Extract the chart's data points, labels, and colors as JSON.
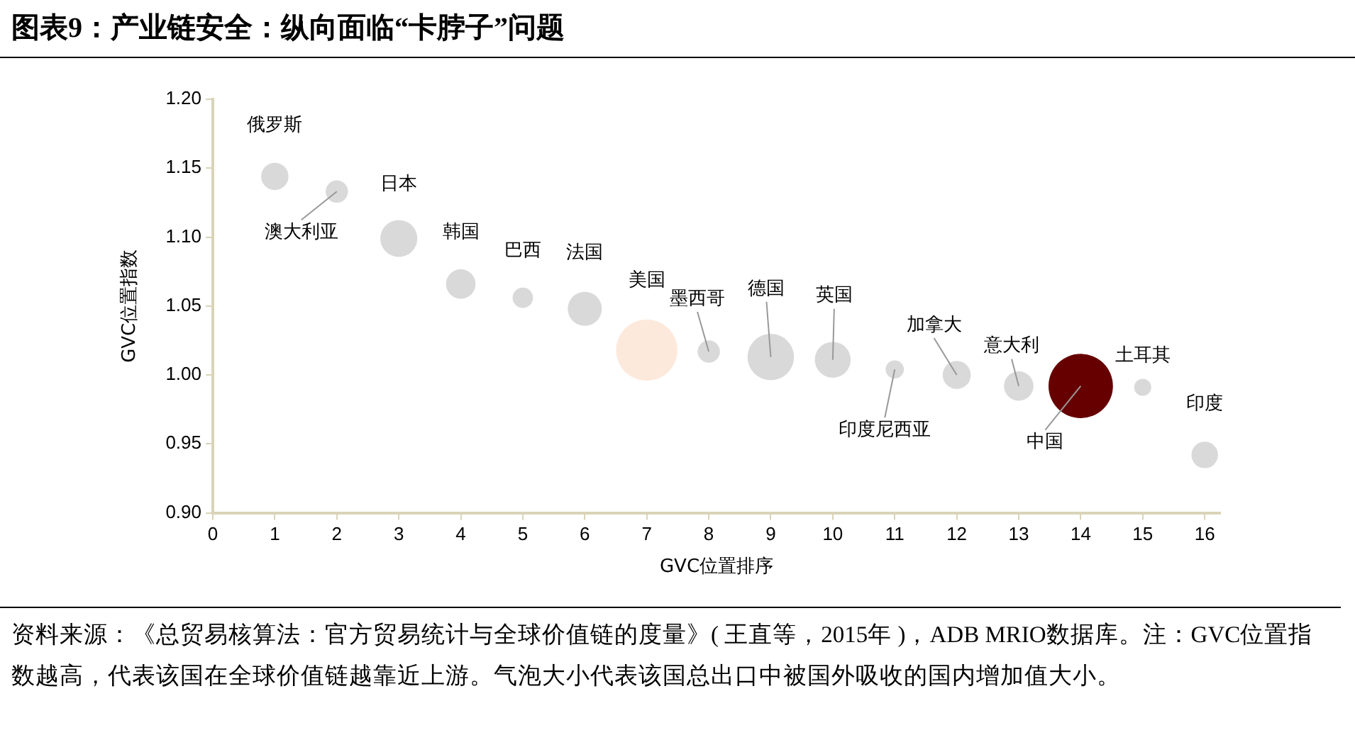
{
  "chart_data": {
    "type": "bubble",
    "title": "图表9：产业链安全：纵向面临“卡脖子”问题",
    "xlabel": "GVC位置排序",
    "ylabel": "GVC位置指数",
    "xlim": [
      0,
      16.25
    ],
    "xticks": [
      0,
      1,
      2,
      3,
      4,
      5,
      6,
      7,
      8,
      9,
      10,
      11,
      12,
      13,
      14,
      15,
      16
    ],
    "ylim": [
      0.9,
      1.2
    ],
    "yticks": [
      {
        "value": 0.9,
        "label": "0.90"
      },
      {
        "value": 0.95,
        "label": "0.95"
      },
      {
        "value": 1.0,
        "label": "1.00"
      },
      {
        "value": 1.05,
        "label": "1.05"
      },
      {
        "value": 1.1,
        "label": "1.10"
      },
      {
        "value": 1.15,
        "label": "1.15"
      },
      {
        "value": 1.2,
        "label": "1.20"
      }
    ],
    "grid": false,
    "legend": false,
    "series": [
      {
        "name": "俄罗斯",
        "color": "#d9d9d9",
        "x": [
          1
        ],
        "values": [
          1.144
        ],
        "sizes": [
          0.18
        ]
      },
      {
        "name": "澳大利亚",
        "color": "#d9d9d9",
        "x": [
          2
        ],
        "values": [
          1.133
        ],
        "sizes": [
          0.12
        ]
      },
      {
        "name": "日本",
        "color": "#d9d9d9",
        "x": [
          3
        ],
        "values": [
          1.099
        ],
        "sizes": [
          0.33
        ]
      },
      {
        "name": "韩国",
        "color": "#d9d9d9",
        "x": [
          4
        ],
        "values": [
          1.066
        ],
        "sizes": [
          0.21
        ]
      },
      {
        "name": "巴西",
        "color": "#d9d9d9",
        "x": [
          5
        ],
        "values": [
          1.056
        ],
        "sizes": [
          0.1
        ]
      },
      {
        "name": "法国",
        "color": "#d9d9d9",
        "x": [
          6
        ],
        "values": [
          1.048
        ],
        "sizes": [
          0.28
        ]
      },
      {
        "name": "美国",
        "color": "#fde9dc",
        "x": [
          7
        ],
        "values": [
          1.018
        ],
        "sizes": [
          0.91
        ]
      },
      {
        "name": "墨西哥",
        "color": "#d9d9d9",
        "x": [
          8
        ],
        "values": [
          1.017
        ],
        "sizes": [
          0.12
        ]
      },
      {
        "name": "德国",
        "color": "#d9d9d9",
        "x": [
          9
        ],
        "values": [
          1.013
        ],
        "sizes": [
          0.52
        ]
      },
      {
        "name": "英国",
        "color": "#d9d9d9",
        "x": [
          10
        ],
        "values": [
          1.011
        ],
        "sizes": [
          0.31
        ]
      },
      {
        "name": "印度尼西亚",
        "color": "#d9d9d9",
        "x": [
          11
        ],
        "values": [
          1.004
        ],
        "sizes": [
          0.08
        ]
      },
      {
        "name": "加拿大",
        "color": "#d9d9d9",
        "x": [
          12
        ],
        "values": [
          1.0
        ],
        "sizes": [
          0.19
        ]
      },
      {
        "name": "意大利",
        "color": "#d9d9d9",
        "x": [
          13
        ],
        "values": [
          0.992
        ],
        "sizes": [
          0.21
        ]
      },
      {
        "name": "中国",
        "color": "#660000",
        "x": [
          14
        ],
        "values": [
          0.992
        ],
        "sizes": [
          1
        ]
      },
      {
        "name": "土耳其",
        "color": "#d9d9d9",
        "x": [
          15
        ],
        "values": [
          0.991
        ],
        "sizes": [
          0.07
        ]
      },
      {
        "name": "印度",
        "color": "#d9d9d9",
        "x": [
          16
        ],
        "values": [
          0.942
        ],
        "sizes": [
          0.17
        ]
      }
    ],
    "annotations": [
      "资料来源：《总贸易核算法：官方贸易统计与全球价值链的度量》( 王直等，2015年 )，ADB MRIO数据库。注：GVC位置指数越高，代表该国在全球价值链越靠近上游。气泡大小代表该国总出口中被国外吸收的国内增加值大小。"
    ]
  }
}
